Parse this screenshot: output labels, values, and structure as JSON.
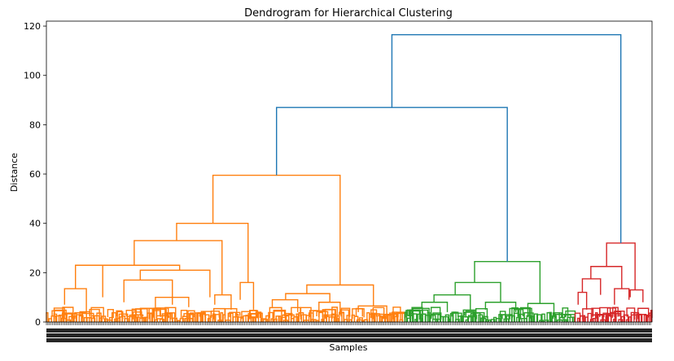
{
  "chart_data": {
    "type": "dendrogram",
    "title": "Dendrogram for Hierarchical Clustering",
    "xlabel": "Samples",
    "ylabel": "Distance",
    "ylim": [
      0,
      122
    ],
    "yticks": [
      0,
      20,
      40,
      60,
      80,
      100,
      120
    ],
    "grid": false,
    "leaf_span": [
      0,
      1
    ],
    "link_colors": {
      "above": "#1f77b4",
      "cluster1": "#ff7f0e",
      "cluster2": "#2ca02c",
      "cluster3": "#d62728"
    },
    "top_links": [
      {
        "name": "root",
        "height": 116.5,
        "left_height": 87.0,
        "right_height": 32.0
      },
      {
        "name": "merge-orange-green",
        "height": 87.0,
        "left_height": 59.5,
        "right_height": 24.5
      }
    ],
    "clusters": [
      {
        "name": "cluster1",
        "color_key": "cluster1",
        "span": [
          0.0,
          0.592
        ],
        "links": [
          {
            "h": 59.5,
            "l": [
              0.275,
              40.0
            ],
            "r": [
              0.485,
              15.0
            ]
          },
          {
            "h": 40.0,
            "l": [
              0.215,
              33.0
            ],
            "r": [
              0.333,
              16.0
            ]
          },
          {
            "h": 33.0,
            "l": [
              0.145,
              23.0
            ],
            "r": [
              0.29,
              11.0
            ]
          },
          {
            "h": 23.0,
            "l": [
              0.09,
              23.0
            ],
            "r": [
              0.22,
              21.0
            ]
          },
          {
            "h": 23.0,
            "l": [
              0.048,
              13.5
            ],
            "r": [
              0.093,
              10.0
            ]
          },
          {
            "h": 21.0,
            "l": [
              0.155,
              17.0
            ],
            "r": [
              0.27,
              10.0
            ]
          },
          {
            "h": 17.0,
            "l": [
              0.128,
              8.0
            ],
            "r": [
              0.208,
              7.0
            ]
          },
          {
            "h": 16.0,
            "l": [
              0.32,
              9.0
            ],
            "r": [
              0.342,
              5.0
            ]
          },
          {
            "h": 13.5,
            "l": [
              0.03,
              7.0
            ],
            "r": [
              0.066,
              4.0
            ]
          },
          {
            "h": 11.0,
            "l": [
              0.278,
              7.0
            ],
            "r": [
              0.305,
              5.0
            ]
          },
          {
            "h": 15.0,
            "l": [
              0.43,
              11.5
            ],
            "r": [
              0.54,
              6.5
            ]
          },
          {
            "h": 11.5,
            "l": [
              0.395,
              9.0
            ],
            "r": [
              0.468,
              8.0
            ]
          },
          {
            "h": 9.0,
            "l": [
              0.373,
              6.0
            ],
            "r": [
              0.415,
              4.0
            ]
          },
          {
            "h": 8.0,
            "l": [
              0.45,
              4.0
            ],
            "r": [
              0.485,
              3.0
            ]
          },
          {
            "h": 6.5,
            "l": [
              0.515,
              4.0
            ],
            "r": [
              0.562,
              3.0
            ]
          },
          {
            "h": 10.0,
            "l": [
              0.18,
              5.0
            ],
            "r": [
              0.235,
              6.0
            ]
          }
        ]
      },
      {
        "name": "cluster2",
        "color_key": "cluster2",
        "span": [
          0.592,
          0.873
        ],
        "links": [
          {
            "h": 24.5,
            "l": [
              0.707,
              16.0
            ],
            "r": [
              0.815,
              7.5
            ]
          },
          {
            "h": 16.0,
            "l": [
              0.675,
              11.0
            ],
            "r": [
              0.75,
              8.0
            ]
          },
          {
            "h": 11.0,
            "l": [
              0.64,
              8.0
            ],
            "r": [
              0.7,
              5.0
            ]
          },
          {
            "h": 8.0,
            "l": [
              0.62,
              5.5
            ],
            "r": [
              0.662,
              4.0
            ]
          },
          {
            "h": 8.0,
            "l": [
              0.725,
              5.0
            ],
            "r": [
              0.775,
              4.0
            ]
          },
          {
            "h": 7.5,
            "l": [
              0.795,
              2.0
            ],
            "r": [
              0.838,
              2.0
            ]
          },
          {
            "h": 5.5,
            "l": [
              0.605,
              3.0
            ],
            "r": [
              0.632,
              2.5
            ]
          }
        ]
      },
      {
        "name": "cluster3",
        "color_key": "cluster3",
        "span": [
          0.873,
          1.0
        ],
        "links": [
          {
            "h": 32.0,
            "l": [
              0.925,
              22.5
            ],
            "r": [
              0.972,
              13.0
            ]
          },
          {
            "h": 22.5,
            "l": [
              0.899,
              17.5
            ],
            "r": [
              0.95,
              13.5
            ]
          },
          {
            "h": 17.5,
            "l": [
              0.885,
              12.0
            ],
            "r": [
              0.915,
              11.0
            ]
          },
          {
            "h": 13.5,
            "l": [
              0.938,
              7.0
            ],
            "r": [
              0.962,
              9.0
            ]
          },
          {
            "h": 13.0,
            "l": [
              0.964,
              10.0
            ],
            "r": [
              0.985,
              8.0
            ]
          },
          {
            "h": 12.0,
            "l": [
              0.878,
              7.0
            ],
            "r": [
              0.892,
              5.0
            ]
          }
        ]
      }
    ]
  }
}
